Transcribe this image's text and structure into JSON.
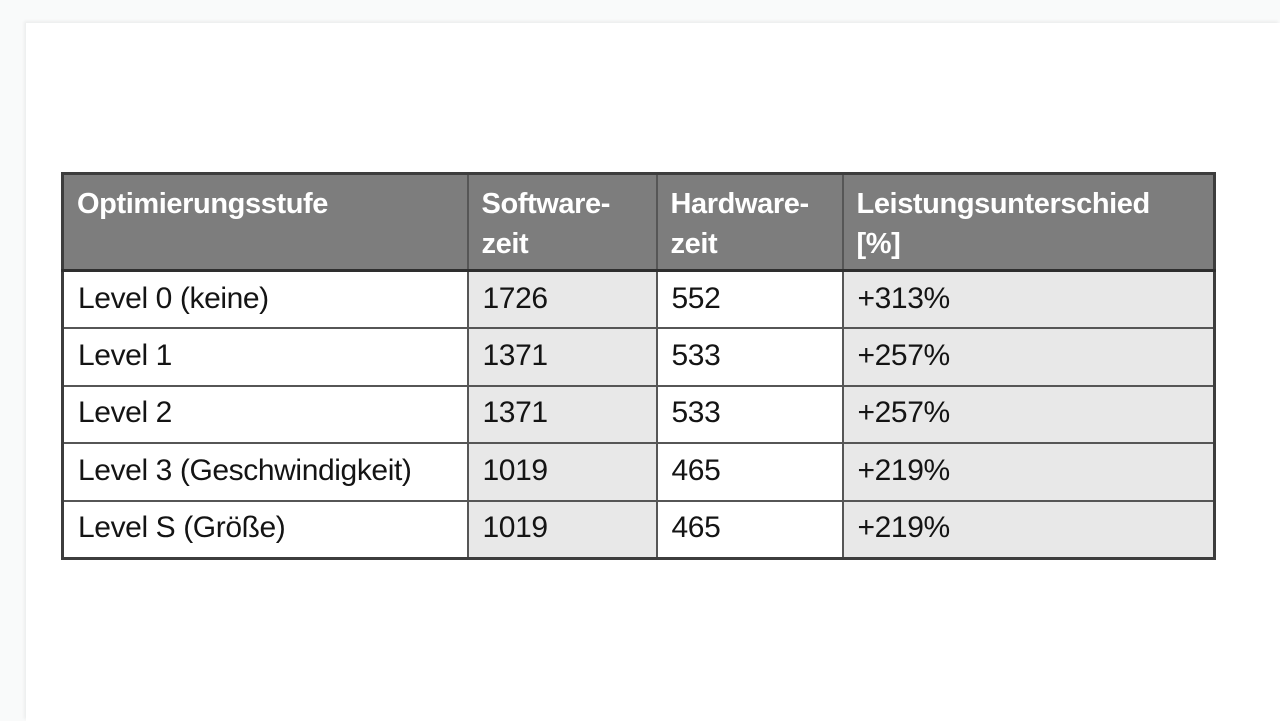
{
  "colors": {
    "page_background": "#f9fafa",
    "panel_background": "#ffffff",
    "header_background": "#7d7d7d",
    "header_text": "#ffffff",
    "shaded_cell_background": "#e8e8e8",
    "body_text": "#141414",
    "grid_border": "#565656",
    "outer_border": "#3d3d3d"
  },
  "header_display": {
    "col1": "Optimierungsstufe",
    "col2": "Software-\nzeit",
    "col3": "Hardware-\nzeit",
    "col4": "Leistungsunterschied\n[%]"
  },
  "chart_data": {
    "type": "table",
    "columns": [
      "Optimierungsstufe",
      "Software-zeit",
      "Hardware-zeit",
      "Leistungsunterschied [%]"
    ],
    "rows": [
      [
        "Level 0 (keine)",
        1726,
        552,
        "+313%"
      ],
      [
        "Level 1",
        1371,
        533,
        "+257%"
      ],
      [
        "Level 2",
        1371,
        533,
        "+257%"
      ],
      [
        "Level 3 (Geschwindigkeit)",
        1019,
        465,
        "+219%"
      ],
      [
        "Level S (Größe)",
        1019,
        465,
        "+219%"
      ]
    ]
  }
}
